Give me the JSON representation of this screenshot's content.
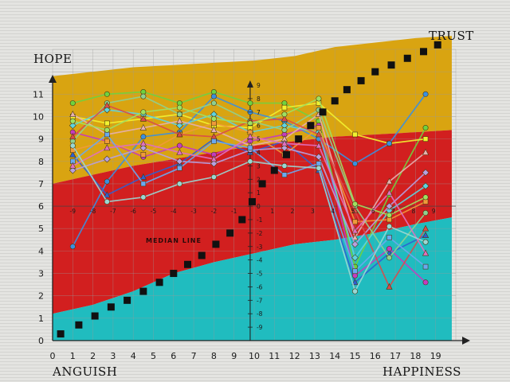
{
  "corner_labels": {
    "top_left": "HOPE",
    "top_right": "TRUST",
    "bottom_left": "ANGUISH",
    "bottom_right": "HAPPINESS"
  },
  "median_label": "MEDIAN LINE",
  "colors": {
    "background": "#e4e4e1",
    "gold_zone": "#d9a411",
    "red_zone": "#d21f1f",
    "teal_zone": "#20bcbf",
    "grid": "#9a9a9a",
    "median_marker": "#111111"
  },
  "chart_data": {
    "type": "line",
    "xlim": [
      0,
      20
    ],
    "ylim": [
      0,
      13
    ],
    "x_ticks": [
      0,
      1,
      2,
      3,
      4,
      5,
      6,
      7,
      8,
      9,
      10,
      11,
      12,
      13,
      14,
      15,
      16,
      17,
      18,
      19
    ],
    "y_ticks": [
      0,
      1,
      2,
      3,
      4,
      5,
      6,
      7,
      8,
      9,
      10,
      11
    ],
    "grid": true,
    "center_axis": {
      "x": 9.8,
      "tick_labels": [
        "9",
        "8",
        "7",
        "6",
        "5",
        "4",
        "3",
        "2",
        "1",
        "0",
        "-1",
        "-2",
        "-3",
        "-4",
        "-5",
        "-6",
        "-7",
        "-8",
        "-9"
      ],
      "tick_values": [
        11.4,
        10.8,
        10.2,
        9.6,
        9.0,
        8.4,
        7.8,
        7.2,
        6.6,
        6.0,
        5.4,
        4.8,
        4.2,
        3.6,
        3.0,
        2.4,
        1.8,
        1.2,
        0.6
      ]
    },
    "horizontal_labels": {
      "y": 6.0,
      "labels": [
        "-9",
        "-8",
        "-7",
        "-6",
        "-5",
        "-4",
        "-3",
        "-2",
        "-1",
        "1",
        "2",
        "3",
        "4",
        "5",
        "6",
        "7",
        "8",
        "9"
      ],
      "x_values": [
        1,
        2,
        3,
        4,
        5,
        6,
        7,
        8,
        9,
        10.9,
        11.9,
        12.9,
        13.9,
        14.9,
        15.9,
        16.9,
        17.9,
        18.9
      ]
    },
    "zones": {
      "x": [
        0,
        2,
        4,
        6,
        8,
        10,
        12,
        14,
        16,
        18,
        19.8
      ],
      "gold_top": [
        11.8,
        12.0,
        12.2,
        12.3,
        12.4,
        12.5,
        12.7,
        13.1,
        13.3,
        13.5,
        13.6
      ],
      "red_top": [
        7.0,
        7.4,
        7.8,
        8.1,
        8.4,
        8.7,
        8.9,
        9.1,
        9.2,
        9.3,
        9.4
      ],
      "teal_top": [
        1.2,
        1.6,
        2.2,
        3.0,
        3.5,
        3.9,
        4.3,
        4.5,
        4.8,
        5.2,
        5.5
      ]
    },
    "median_markers": {
      "x": [
        0.4,
        1.3,
        2.1,
        2.9,
        3.7,
        4.5,
        5.3,
        6.0,
        6.7,
        7.4,
        8.1,
        8.8,
        9.4,
        9.9,
        10.4,
        11.0,
        11.6,
        12.2,
        12.8,
        13.4,
        14.0,
        14.6,
        15.3,
        16.0,
        16.8,
        17.6,
        18.4,
        19.1
      ],
      "y": [
        0.3,
        0.7,
        1.1,
        1.5,
        1.8,
        2.2,
        2.6,
        3.0,
        3.4,
        3.8,
        4.3,
        4.8,
        5.4,
        6.2,
        7.0,
        7.6,
        8.3,
        9.0,
        9.6,
        10.2,
        10.7,
        11.2,
        11.6,
        12.0,
        12.3,
        12.6,
        12.9,
        13.2
      ]
    },
    "series_x": [
      1,
      2.7,
      4.5,
      6.3,
      8,
      9.8,
      11.5,
      13.2,
      15,
      16.7,
      18.5
    ],
    "series": [
      {
        "color": "#6fd23f",
        "marker": "circle",
        "values": [
          10.6,
          11.0,
          11.1,
          10.6,
          11.1,
          10.6,
          10.6,
          9.8,
          3.3,
          6.5,
          9.5
        ]
      },
      {
        "color": "#f2f230",
        "marker": "square",
        "values": [
          10.0,
          9.7,
          9.9,
          10.1,
          9.6,
          9.5,
          10.4,
          10.6,
          9.2,
          8.8,
          9.0
        ]
      },
      {
        "color": "#3a8fe0",
        "marker": "circle",
        "values": [
          4.2,
          7.1,
          9.1,
          9.3,
          10.9,
          10.2,
          9.8,
          9.0,
          7.9,
          8.8,
          11.0
        ]
      },
      {
        "color": "#2f5fd0",
        "marker": "triangle",
        "values": [
          8.3,
          6.5,
          7.3,
          7.9,
          9.0,
          8.4,
          8.9,
          7.6,
          2.6,
          3.9,
          4.7
        ]
      },
      {
        "color": "#c53bc0",
        "marker": "circle",
        "values": [
          9.3,
          8.9,
          8.2,
          8.7,
          8.3,
          8.9,
          9.2,
          9.6,
          2.9,
          4.1,
          2.6
        ]
      },
      {
        "color": "#5ed3e0",
        "marker": "diamond",
        "values": [
          9.6,
          10.3,
          10.1,
          9.6,
          10.1,
          9.3,
          9.6,
          9.3,
          3.7,
          5.8,
          6.9
        ]
      },
      {
        "color": "#f09a3a",
        "marker": "square",
        "values": [
          8.5,
          8.9,
          8.3,
          9.2,
          9.7,
          9.3,
          8.3,
          9.5,
          5.3,
          5.4,
          6.2
        ]
      },
      {
        "color": "#e6b0b0",
        "marker": "triangle",
        "values": [
          10.1,
          9.2,
          9.5,
          9.8,
          9.4,
          8.7,
          9.0,
          10.1,
          4.6,
          7.1,
          8.4
        ]
      },
      {
        "color": "#8fd08f",
        "marker": "circle",
        "values": [
          8.9,
          10.6,
          10.9,
          10.1,
          10.6,
          9.8,
          9.4,
          10.3,
          6.0,
          3.7,
          5.7
        ]
      },
      {
        "color": "#b7a0e0",
        "marker": "diamond",
        "values": [
          7.6,
          8.1,
          8.6,
          8.0,
          7.9,
          8.5,
          8.6,
          8.2,
          4.3,
          6.0,
          7.5
        ]
      },
      {
        "color": "#d94a4a",
        "marker": "triangle",
        "values": [
          9.1,
          10.5,
          9.9,
          9.2,
          9.1,
          9.8,
          9.9,
          9.2,
          5.8,
          2.4,
          5.0
        ]
      },
      {
        "color": "#6aa8f0",
        "marker": "square",
        "values": [
          8.0,
          9.2,
          7.0,
          7.7,
          8.9,
          8.6,
          7.4,
          7.9,
          3.1,
          4.6,
          3.3
        ]
      },
      {
        "color": "#a0e060",
        "marker": "circle",
        "values": [
          9.8,
          9.4,
          10.2,
          10.4,
          9.9,
          9.7,
          10.1,
          10.8,
          6.1,
          5.6,
          6.4
        ]
      },
      {
        "color": "#e070c0",
        "marker": "triangle",
        "values": [
          7.8,
          8.6,
          8.8,
          8.4,
          8.1,
          9.1,
          8.8,
          8.7,
          4.9,
          6.6,
          3.9
        ]
      },
      {
        "color": "#9ad7d4",
        "marker": "circle",
        "values": [
          8.7,
          6.2,
          6.4,
          7.0,
          7.3,
          8.0,
          7.8,
          7.7,
          2.2,
          5.1,
          4.4
        ]
      }
    ]
  }
}
